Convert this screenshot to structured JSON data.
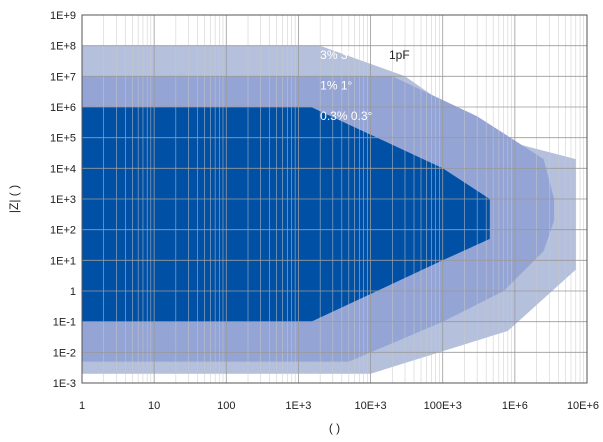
{
  "chart_data": {
    "type": "area",
    "xscale": "log",
    "yscale": "log",
    "xlim": [
      1,
      10000000
    ],
    "ylim": [
      0.001,
      1000000000
    ],
    "grid": true,
    "xlabel": "(   )",
    "ylabel": "|Z| (   )",
    "x_ticks": [
      {
        "v": 1,
        "label": "1"
      },
      {
        "v": 10,
        "label": "10"
      },
      {
        "v": 100,
        "label": "100"
      },
      {
        "v": 1000,
        "label": "1E+3"
      },
      {
        "v": 10000,
        "label": "10E+3"
      },
      {
        "v": 100000,
        "label": "100E+3"
      },
      {
        "v": 1000000,
        "label": "1E+6"
      },
      {
        "v": 10000000,
        "label": "10E+6"
      }
    ],
    "y_ticks": [
      {
        "v": 1000000000,
        "label": "1E+9"
      },
      {
        "v": 100000000,
        "label": "1E+8"
      },
      {
        "v": 10000000,
        "label": "1E+7"
      },
      {
        "v": 1000000,
        "label": "1E+6"
      },
      {
        "v": 100000,
        "label": "1E+5"
      },
      {
        "v": 10000,
        "label": "1E+4"
      },
      {
        "v": 1000,
        "label": "1E+3"
      },
      {
        "v": 100,
        "label": "1E+2"
      },
      {
        "v": 10,
        "label": "1E+1"
      },
      {
        "v": 1,
        "label": "1"
      },
      {
        "v": 0.1,
        "label": "1E-1"
      },
      {
        "v": 0.01,
        "label": "1E-2"
      },
      {
        "v": 0.001,
        "label": "1E-3"
      }
    ],
    "series": [
      {
        "name": "3% 3°",
        "color": "#b4c0dc",
        "polygon": [
          [
            1,
            100000000
          ],
          [
            2000,
            100000000
          ],
          [
            30000,
            10000000
          ],
          [
            500000,
            100000
          ],
          [
            7000000,
            20000
          ],
          [
            7000000,
            5
          ],
          [
            800000,
            0.05
          ],
          [
            10000,
            0.002
          ],
          [
            1,
            0.002
          ]
        ]
      },
      {
        "name": "1% 1°",
        "color": "#94a4d4",
        "polygon": [
          [
            1,
            10000000
          ],
          [
            20000,
            10000000
          ],
          [
            300000,
            500000
          ],
          [
            2500000,
            20000
          ],
          [
            3500000,
            1000
          ],
          [
            3500000,
            200
          ],
          [
            2500000,
            20
          ],
          [
            700000,
            1
          ],
          [
            100000,
            0.1
          ],
          [
            5000,
            0.005
          ],
          [
            1,
            0.005
          ]
        ]
      },
      {
        "name": "0.3% 0.3°",
        "color": "#0050a5",
        "polygon": [
          [
            1,
            1000000
          ],
          [
            1500,
            1000000
          ],
          [
            100000,
            10000
          ],
          [
            450000,
            1000
          ],
          [
            450000,
            50
          ],
          [
            100000,
            10
          ],
          [
            1500,
            0.1
          ],
          [
            1,
            0.1
          ]
        ]
      }
    ],
    "annotations": [
      {
        "text": "3% 3°",
        "x": 2000,
        "y": 50000000,
        "color": "#ffffff"
      },
      {
        "text": "1% 1°",
        "x": 2000,
        "y": 5000000,
        "color": "#ffffff"
      },
      {
        "text": "0.3% 0.3°",
        "x": 2000,
        "y": 500000,
        "color": "#ffffff"
      },
      {
        "text": "1pF",
        "x": 18000,
        "y": 50000000,
        "color": "#222222"
      }
    ]
  }
}
